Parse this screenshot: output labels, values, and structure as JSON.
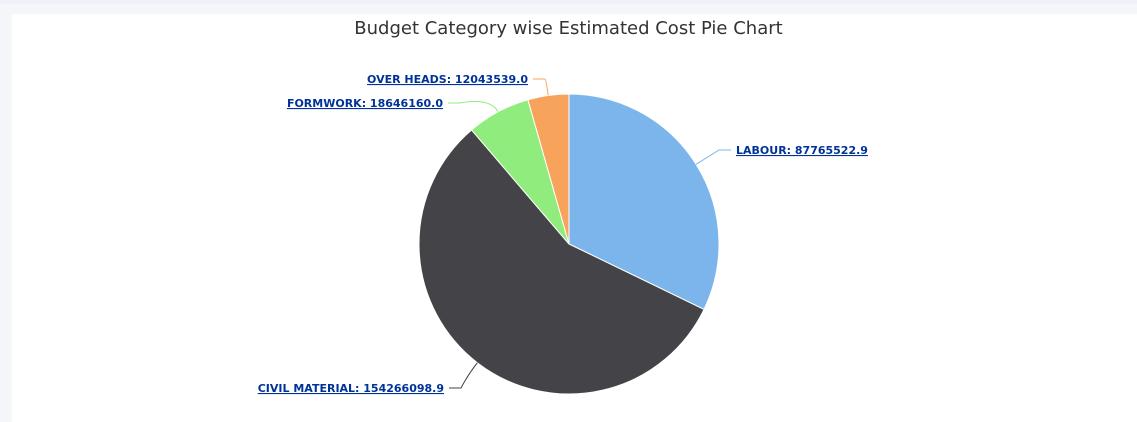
{
  "chart_data": {
    "type": "pie",
    "title": "Budget Category wise Estimated Cost Pie Chart",
    "slices": [
      {
        "name": "LABOUR",
        "value": 87765522.9,
        "label": "LABOUR: 87765522.9",
        "color": "#7cb5ec"
      },
      {
        "name": "CIVIL MATERIAL",
        "value": 154266098.9,
        "label": "CIVIL MATERIAL: 154266098.9",
        "color": "#434348"
      },
      {
        "name": "FORMWORK",
        "value": 18646160.0,
        "label": "FORMWORK: 18646160.0",
        "color": "#90ed7d"
      },
      {
        "name": "OVER HEADS",
        "value": 12043539.0,
        "label": "OVER HEADS: 12043539.0",
        "color": "#f7a35c"
      }
    ],
    "start_angle": "12 o'clock",
    "direction": "clockwise",
    "legend": "none",
    "data_labels": "outside with connectors"
  },
  "colors": {
    "page_background": "#f4f6fa",
    "panel_background": "#ffffff",
    "title_text": "#333333",
    "label_text": "#003399"
  }
}
